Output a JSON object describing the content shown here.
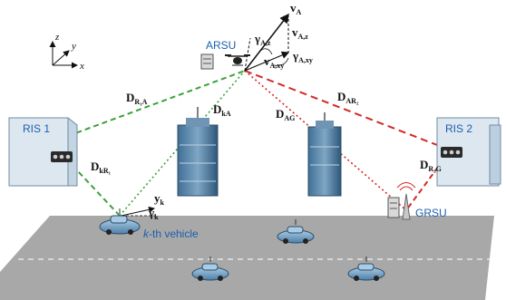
{
  "axes": {
    "z": "z",
    "y": "y",
    "x": "x"
  },
  "nodes": {
    "arsu": "ARSU",
    "ris1": "RIS 1",
    "ris2": "RIS 2",
    "grsu": "GRSU",
    "vehicle_k": "-th vehicle",
    "vehicle_k_italic": "k"
  },
  "channels": {
    "d_r1a": {
      "main": "D",
      "sub": "R₁A"
    },
    "d_ka": {
      "main": "D",
      "sub": "kA"
    },
    "d_ag": {
      "main": "D",
      "sub": "AG"
    },
    "d_ar2": {
      "main": "D",
      "sub": "AR₂"
    },
    "d_kr1": {
      "main": "D",
      "sub": "kR₁"
    },
    "d_r2g": {
      "main": "D",
      "sub": "R₂G"
    }
  },
  "vectors": {
    "v_a": {
      "main": "v",
      "sub": "A"
    },
    "v_az": {
      "main": "v",
      "sub": "A,z"
    },
    "v_axy": {
      "main": "v",
      "sub": "A,xy"
    },
    "gamma_az": {
      "main": "γ",
      "sub": "A,z"
    },
    "gamma_axy": {
      "main": "γ",
      "sub": "A,xy"
    },
    "y_k": {
      "main": "y",
      "sub": "k"
    },
    "gamma_k": {
      "main": "γ",
      "sub": "k"
    }
  },
  "colors": {
    "green_link": "#3aa13a",
    "red_link": "#d42828",
    "road": "#a6a6a6",
    "label_blue": "#1a5fae"
  }
}
